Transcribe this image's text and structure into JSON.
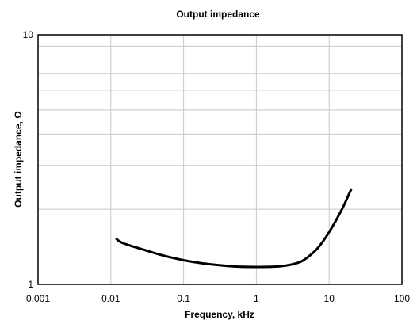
{
  "chart_data": {
    "type": "line",
    "title": "Output impedance",
    "xlabel": "Frequency, kHz",
    "ylabel": "Output impedance, Ω",
    "x_scale": "log",
    "y_scale": "log",
    "xlim": [
      0.001,
      100
    ],
    "ylim": [
      1,
      10
    ],
    "x_ticks": [
      0.001,
      0.01,
      0.1,
      1,
      10,
      100
    ],
    "x_tick_labels": [
      "0.001",
      "0.01",
      "0.1",
      "1",
      "10",
      "100"
    ],
    "y_ticks": [
      1,
      10
    ],
    "y_tick_labels": [
      "1",
      "10"
    ],
    "grid": true,
    "legend": "none",
    "series": [
      {
        "color": "#000000",
        "x": [
          0.012,
          0.013,
          0.015,
          0.02,
          0.03,
          0.05,
          0.1,
          0.2,
          0.5,
          1,
          2,
          3,
          4,
          5,
          7,
          10,
          15,
          20
        ],
        "y": [
          1.52,
          1.49,
          1.46,
          1.42,
          1.37,
          1.31,
          1.25,
          1.21,
          1.18,
          1.175,
          1.18,
          1.2,
          1.23,
          1.28,
          1.4,
          1.62,
          2.0,
          2.4
        ]
      }
    ]
  }
}
